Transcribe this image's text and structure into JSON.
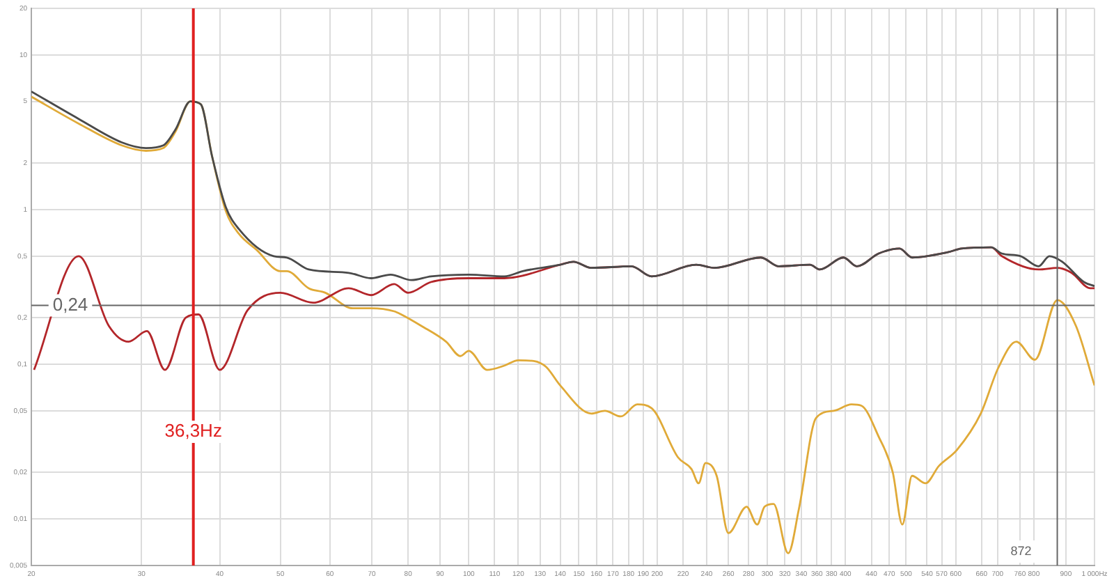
{
  "chart_data": {
    "type": "line",
    "log": "xy",
    "grid": true,
    "legend": false,
    "marker": "none",
    "line_style": "solid",
    "xlim": [
      20,
      1000
    ],
    "xticks": [
      20,
      30,
      40,
      50,
      60,
      70,
      80,
      90,
      100,
      110,
      120,
      130,
      140,
      150,
      160,
      170,
      180,
      190,
      200,
      220,
      240,
      260,
      280,
      300,
      320,
      340,
      360,
      380,
      400,
      440,
      470,
      500,
      540,
      570,
      600,
      660,
      700,
      760,
      800,
      900,
      {
        "value": 1000,
        "label": "1 000Hz"
      }
    ],
    "ylim": [
      0.005,
      20
    ],
    "yticks": [
      {
        "value": 0.005,
        "label": "0,005"
      },
      {
        "value": 0.01,
        "label": "0,01"
      },
      {
        "value": 0.02,
        "label": "0,02"
      },
      {
        "value": 0.05,
        "label": "0,05"
      },
      {
        "value": 0.1,
        "label": "0,1"
      },
      {
        "value": 0.2,
        "label": "0,2"
      },
      {
        "value": 0.5,
        "label": "0,5"
      },
      1,
      2,
      5,
      10,
      20
    ],
    "series": [
      {
        "color": "#4a4a4a",
        "x": [
          20,
          23.8,
          27.9,
          30.5,
          32.5,
          34,
          35.9,
          37.3,
          38.9,
          40.9,
          42.9,
          48.8,
          51.2,
          55.5,
          64.3,
          69.8,
          75,
          81,
          87,
          100,
          114,
          122,
          140,
          147,
          157,
          182,
          196,
          231,
          247,
          293,
          313,
          351,
          364,
          397,
          417,
          452,
          488,
          511,
          583,
          613,
          684,
          711,
          762,
          814,
          847,
          888,
          962,
          1000
        ],
        "values": [
          5.8,
          3.86,
          2.72,
          2.5,
          2.6,
          3.3,
          5.0,
          4.8,
          2.2,
          1.04,
          0.75,
          0.5,
          0.49,
          0.41,
          0.39,
          0.36,
          0.38,
          0.35,
          0.37,
          0.38,
          0.37,
          0.4,
          0.44,
          0.46,
          0.42,
          0.43,
          0.37,
          0.44,
          0.42,
          0.49,
          0.43,
          0.44,
          0.41,
          0.49,
          0.43,
          0.52,
          0.56,
          0.49,
          0.53,
          0.56,
          0.57,
          0.52,
          0.5,
          0.43,
          0.5,
          0.46,
          0.34,
          0.32
        ]
      },
      {
        "color": "#b3262a",
        "x": [
          20.2,
          23.8,
          26.6,
          28.6,
          30.6,
          32.7,
          35.3,
          37,
          40,
          44.3,
          50,
          56.4,
          64.3,
          69.8,
          76,
          80,
          87,
          100,
          114,
          140,
          147,
          157,
          182,
          196,
          231,
          247,
          293,
          313,
          351,
          364,
          397,
          417,
          452,
          488,
          511,
          583,
          613,
          684,
          711,
          814,
          872,
          919,
          985,
          1000
        ],
        "values": [
          0.092,
          0.5,
          0.177,
          0.14,
          0.164,
          0.092,
          0.2,
          0.21,
          0.092,
          0.223,
          0.29,
          0.25,
          0.31,
          0.28,
          0.33,
          0.29,
          0.34,
          0.36,
          0.36,
          0.44,
          0.46,
          0.42,
          0.43,
          0.37,
          0.44,
          0.42,
          0.49,
          0.43,
          0.44,
          0.41,
          0.49,
          0.43,
          0.52,
          0.56,
          0.49,
          0.53,
          0.56,
          0.57,
          0.5,
          0.41,
          0.42,
          0.39,
          0.31,
          0.31
        ]
      },
      {
        "color": "#e0aa38",
        "x": [
          20,
          23.8,
          27.9,
          30.5,
          32.5,
          34,
          35.9,
          37.3,
          38.9,
          40.9,
          42.9,
          45.8,
          50,
          51.2,
          55.5,
          59,
          65.3,
          69.8,
          76,
          78,
          84,
          92,
          97,
          100,
          107,
          114,
          120,
          127,
          133,
          140,
          157,
          165,
          175,
          186,
          196,
          216,
          227,
          233,
          239,
          249,
          260,
          278,
          289,
          297,
          307,
          324,
          337,
          359,
          383,
          409,
          424,
          452,
          476,
          493,
          511,
          537,
          564,
          603,
          658,
          702,
          750,
          803,
          872,
          934,
          1000
        ],
        "values": [
          5.37,
          3.6,
          2.6,
          2.4,
          2.5,
          3.2,
          5.0,
          4.8,
          2.2,
          0.98,
          0.7,
          0.55,
          0.4,
          0.4,
          0.31,
          0.29,
          0.23,
          0.23,
          0.22,
          0.21,
          0.177,
          0.14,
          0.113,
          0.122,
          0.092,
          0.098,
          0.106,
          0.105,
          0.096,
          0.073,
          0.048,
          0.05,
          0.046,
          0.055,
          0.052,
          0.025,
          0.021,
          0.017,
          0.023,
          0.019,
          0.0081,
          0.012,
          0.0092,
          0.012,
          0.0125,
          0.006,
          0.0116,
          0.045,
          0.05,
          0.055,
          0.054,
          0.034,
          0.02,
          0.0092,
          0.019,
          0.017,
          0.022,
          0.028,
          0.048,
          0.095,
          0.14,
          0.107,
          0.26,
          0.177,
          0.073
        ]
      }
    ],
    "ref_lines": [
      {
        "axis": "y",
        "value": 0.24,
        "label": "0,24",
        "color": "#666666"
      },
      {
        "axis": "x",
        "value": 872,
        "label": "872",
        "color": "#666666"
      },
      {
        "axis": "x",
        "value": 36.3,
        "label": "36,3Hz",
        "color": "#e02020"
      }
    ]
  }
}
